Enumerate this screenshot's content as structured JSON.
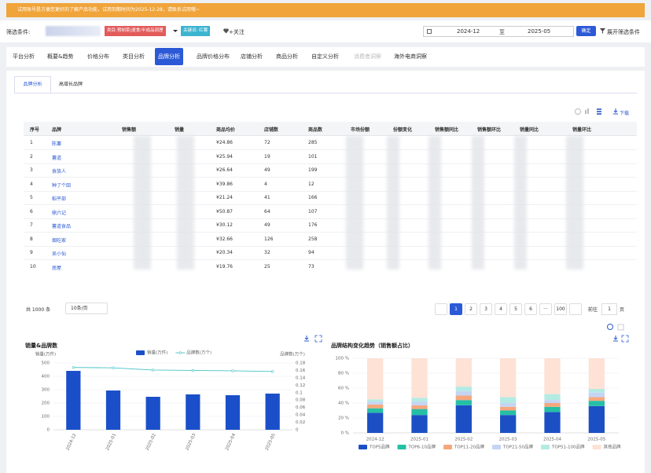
{
  "banner": "试用账号是方便您更好的了解产品功能，试用到期时间为2025-12-28，请联系试用哦~",
  "filter": {
    "label": "筛选条件:",
    "category_tag": "类目:预制菜|速食/半成品调理",
    "keyword_tag": "关键词: 红薯",
    "follow": "+关注",
    "date_start": "2024-12",
    "date_sep": "至",
    "date_end": "2025-05",
    "confirm": "确定",
    "expand": "展开筛选条件"
  },
  "tabs": [
    "平台分析",
    "概要&趋势",
    "价格分布",
    "类目分析",
    "品牌分析",
    "品牌价格分布",
    "店铺分析",
    "商品分析",
    "自定义分析",
    "消费者洞察",
    "海外电商洞察"
  ],
  "subtabs": [
    "品牌分析",
    "高增长品牌"
  ],
  "toolbar": {
    "download": "下载"
  },
  "table": {
    "columns": [
      "序号",
      "品牌",
      "销售额",
      "销量",
      "商品均价",
      "店铺数",
      "商品数",
      "市场份额",
      "份额变化",
      "销售额同比",
      "销售额环比",
      "销量同比",
      "销量环比"
    ],
    "rows": [
      {
        "no": 1,
        "brand": "陈薯",
        "avg_price": "¥24.86",
        "shops": 72,
        "items": 285
      },
      {
        "no": 2,
        "brand": "薯道",
        "avg_price": "¥25.94",
        "shops": 19,
        "items": 101
      },
      {
        "no": 3,
        "brand": "食族人",
        "avg_price": "¥26.64",
        "shops": 49,
        "items": 199
      },
      {
        "no": 4,
        "brand": "种了个田",
        "avg_price": "¥39.86",
        "shops": 4,
        "items": 12
      },
      {
        "no": 5,
        "brand": "稻平部",
        "avg_price": "¥21.24",
        "shops": 41,
        "items": 166
      },
      {
        "no": 6,
        "brand": "鼎六记",
        "avg_price": "¥50.87",
        "shops": 64,
        "items": 107
      },
      {
        "no": 7,
        "brand": "薯道食品",
        "avg_price": "¥30.12",
        "shops": 49,
        "items": 176
      },
      {
        "no": 8,
        "brand": "烟吃家",
        "avg_price": "¥32.66",
        "shops": 126,
        "items": 258
      },
      {
        "no": 9,
        "brand": "吴小仙",
        "avg_price": "¥20.34",
        "shops": 32,
        "items": 94
      },
      {
        "no": 10,
        "brand": "居屋",
        "avg_price": "¥19.76",
        "shops": 25,
        "items": 73
      }
    ]
  },
  "pagination": {
    "total": "共 1000 条",
    "page_size": "10条/页",
    "pages": [
      1,
      2,
      3,
      4,
      5,
      6,
      "···",
      100
    ],
    "goto": "前往",
    "goto_value": 1,
    "page_unit": "页"
  },
  "chart_data": [
    {
      "type": "bar",
      "title": "销量&品牌数",
      "y_label": "销量(万件)",
      "y2_label": "品牌数(万个)",
      "categories": [
        "2024-12",
        "2025-01",
        "2025-02",
        "2025-03",
        "2025-04",
        "2025-05"
      ],
      "series": [
        {
          "name": "销量(万件)",
          "color": "#1a4fc9",
          "values": [
            441,
            294,
            247,
            265,
            259,
            271
          ]
        },
        {
          "name": "品牌数(万个)",
          "color": "#45c2c6",
          "type": "line",
          "axis": "y2",
          "values": [
            0.168,
            0.167,
            0.161,
            0.16,
            0.159,
            0.157
          ]
        }
      ],
      "ylim": [
        0,
        500
      ],
      "yticks": [
        0,
        100,
        200,
        300,
        400,
        500
      ],
      "y2lim": [
        0,
        0.18
      ],
      "y2ticks": [
        0,
        0.02,
        0.04,
        0.06,
        0.08,
        0.1,
        0.12,
        0.14,
        0.16,
        0.18
      ],
      "grid": true,
      "legend": "top"
    },
    {
      "type": "bar",
      "stacked": true,
      "title": "品牌结构变化趋势（销售额占比）",
      "categories": [
        "2024-12",
        "2025-01",
        "2025-02",
        "2025-03",
        "2025-04",
        "2025-05"
      ],
      "series": [
        {
          "name": "TOP5品牌",
          "color": "#1d4fc4",
          "values": [
            27,
            24,
            37,
            24,
            28,
            36
          ]
        },
        {
          "name": "TOP6-10品牌",
          "color": "#25bfa5",
          "values": [
            6,
            8,
            7,
            6,
            7,
            7
          ]
        },
        {
          "name": "TOP11-20品牌",
          "color": "#f5a77d",
          "values": [
            5,
            5,
            6,
            5,
            5,
            5
          ]
        },
        {
          "name": "TOP21-50品牌",
          "color": "#c5d4f4",
          "values": [
            4,
            5,
            6,
            5,
            4,
            6
          ]
        },
        {
          "name": "TOP51-100品牌",
          "color": "#b3ebe3",
          "values": [
            3,
            5,
            6,
            8,
            8,
            5
          ]
        },
        {
          "name": "其他品牌",
          "color": "#fde2d5",
          "values": [
            55,
            53,
            38,
            52,
            48,
            41
          ]
        }
      ],
      "ylim": [
        0,
        100
      ],
      "yticks": [
        {
          "value": 0,
          "label": "0 %"
        },
        {
          "value": 20,
          "label": "20 %"
        },
        {
          "value": 40,
          "label": "40 %"
        },
        {
          "value": 60,
          "label": "60 %"
        },
        {
          "value": 80,
          "label": "80 %"
        },
        {
          "value": 100,
          "label": "100 %"
        }
      ],
      "grid": true,
      "legend": "bottom"
    }
  ]
}
